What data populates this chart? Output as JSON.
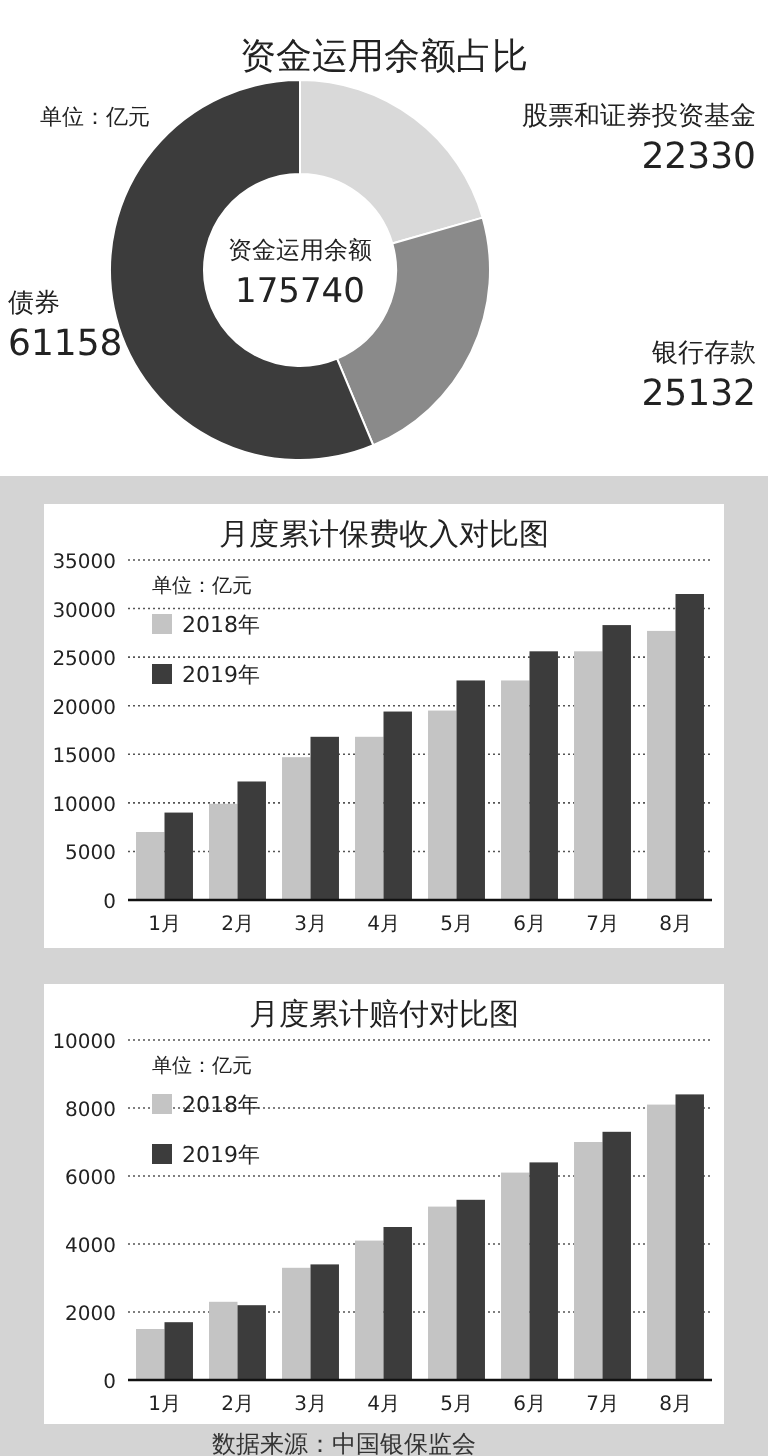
{
  "chart_data": [
    {
      "type": "donut",
      "title": "资金运用余额占比",
      "categories": [
        "股票和证券投资基金",
        "银行存款",
        "债券"
      ],
      "values": [
        22330,
        25132,
        61158
      ],
      "colors": [
        "#d9d9d9",
        "#8a8a8a",
        "#3c3c3c"
      ],
      "data_labels": true,
      "annotations": [
        "单位：亿元",
        "资金运用余额",
        "175740"
      ]
    },
    {
      "type": "bar",
      "title": "月度累计保费收入对比图",
      "categories": [
        "1月",
        "2月",
        "3月",
        "4月",
        "5月",
        "6月",
        "7月",
        "8月"
      ],
      "series": [
        {
          "name": "2018年",
          "color": "#c4c4c4",
          "values": [
            7000,
            9900,
            14700,
            16800,
            19500,
            22600,
            25600,
            27700
          ]
        },
        {
          "name": "2019年",
          "color": "#3c3c3c",
          "values": [
            9000,
            12200,
            16800,
            19400,
            22600,
            25600,
            28300,
            31500
          ]
        }
      ],
      "ylim": [
        0,
        35000
      ],
      "yticks": [
        0,
        5000,
        10000,
        15000,
        20000,
        25000,
        30000,
        35000
      ],
      "grid": "y",
      "legend": "top left",
      "annotations": [
        "单位：亿元"
      ]
    },
    {
      "type": "bar",
      "title": "月度累计赔付对比图",
      "categories": [
        "1月",
        "2月",
        "3月",
        "4月",
        "5月",
        "6月",
        "7月",
        "8月"
      ],
      "series": [
        {
          "name": "2018年",
          "color": "#c4c4c4",
          "values": [
            1500,
            2300,
            3300,
            4100,
            5100,
            6100,
            7000,
            8100
          ]
        },
        {
          "name": "2019年",
          "color": "#3c3c3c",
          "values": [
            1700,
            2200,
            3400,
            4500,
            5300,
            6400,
            7300,
            8400
          ]
        }
      ],
      "ylim": [
        0,
        10000
      ],
      "yticks": [
        0,
        2000,
        4000,
        6000,
        8000,
        10000
      ],
      "grid": "y",
      "legend": "top left",
      "annotations": [
        "单位：亿元",
        "数据来源：中国银保监会"
      ]
    }
  ]
}
